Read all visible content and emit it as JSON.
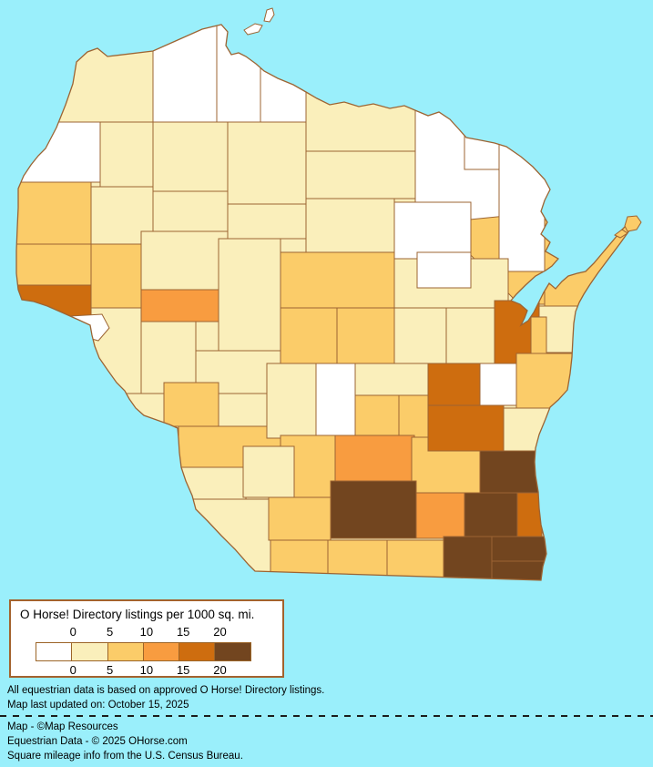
{
  "page": {
    "background_color": "#9AEFFB"
  },
  "legend": {
    "title": "O Horse! Directory listings per 1000 sq. mi.",
    "tick_labels_top": [
      "0",
      "5",
      "10",
      "15",
      "20"
    ],
    "tick_labels_bottom": [
      "0",
      "5",
      "10",
      "15",
      "20"
    ],
    "colors": [
      "#FFFFFF",
      "#FAEFBB",
      "#FBCC69",
      "#F89C40",
      "#CE6D0F",
      "#72451F"
    ],
    "box_border_color": "#A3622D",
    "box_background": "#FFFFFF"
  },
  "notes": {
    "line1": "All equestrian data is based on approved O Horse! Directory listings.",
    "line2": "Map last updated on: October 15, 2025"
  },
  "credits": {
    "line1": "Map - ©Map Resources",
    "line2": "Equestrian Data - © 2025 OHorse.com",
    "line3": "Square mileage info from the U.S. Census Bureau."
  },
  "map": {
    "water_color": "#9AEFFB",
    "county_border_color": "#9C6433",
    "base_fill_bucket": 1,
    "region_buckets": {
      "r01": 1,
      "r02": 0,
      "r03": 0,
      "r04": 0,
      "r05": 1,
      "r06": 1,
      "r07": 1,
      "r08": 0,
      "r09": 0,
      "r10": 0,
      "r11": 1,
      "r12": 1,
      "r13": 1,
      "r14": 1,
      "r15": 1,
      "r16": 2,
      "r17": 0,
      "r18": 0,
      "r19": 1,
      "r20": 0,
      "r21": 2,
      "r22": 2,
      "r23": 1,
      "r24": 1,
      "r25": 1,
      "r26": 2,
      "r27": 2,
      "r28": 4,
      "r29": 3,
      "r30": 1,
      "r31": 0,
      "r32": 1,
      "r33": 1,
      "r34": 1,
      "r35": 2,
      "r36": 2,
      "r37": 2,
      "r38": 1,
      "r39": 1,
      "r40": 4,
      "r41": 2,
      "r42": 1,
      "r43": 2,
      "r44": 2,
      "r45": 2,
      "r46": 1,
      "r47": 1,
      "r48": 0,
      "r49": 1,
      "r50": 2,
      "r51": 2,
      "r52": 4,
      "r53": 0,
      "r54": 1,
      "r55": 2,
      "r56": 1,
      "r57": 3,
      "r58": 2,
      "r59": 4,
      "r60": 5,
      "r61": 1,
      "r62": 2,
      "r63": 5,
      "r64": 3,
      "r65": 5,
      "r66": 4,
      "r67": 2,
      "r68": 2,
      "r69": 2,
      "r70": 5,
      "r71": 5,
      "r72": 5,
      "island-1": 0,
      "island-2": 0,
      "island-3": 2,
      "island-4": 2
    }
  }
}
